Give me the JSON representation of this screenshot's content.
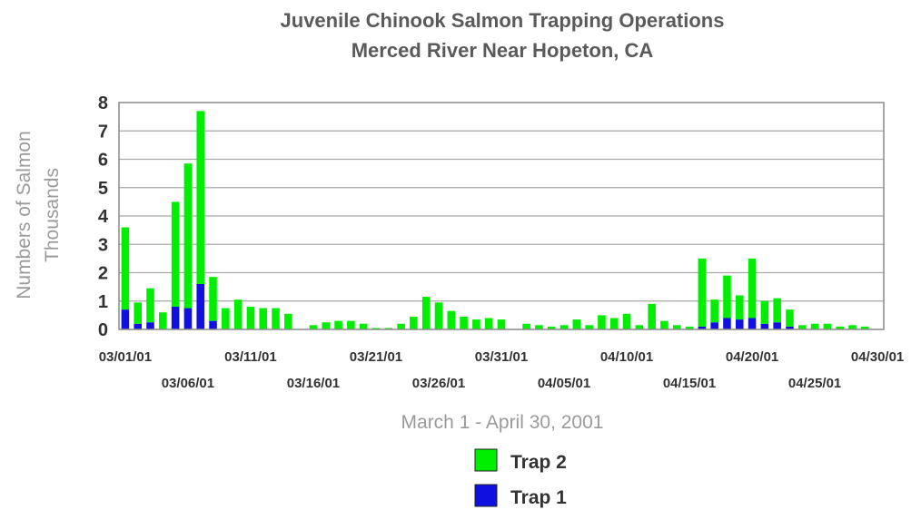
{
  "chart_data": {
    "type": "bar",
    "stacked": true,
    "title": "Juvenile Chinook Salmon Trapping Operations",
    "subtitle": "Merced River Near Hopeton, CA",
    "xlabel": "March 1 - April 30, 2001",
    "ylabel": "Numbers of Salmon",
    "ylabel2": "Thousands",
    "ylim": [
      0,
      8
    ],
    "yticks": [
      0,
      1,
      2,
      3,
      4,
      5,
      6,
      7,
      8
    ],
    "grid": true,
    "legend_position": "bottom-center",
    "categories": [
      "03/01/01",
      "03/02/01",
      "03/03/01",
      "03/04/01",
      "03/05/01",
      "03/06/01",
      "03/07/01",
      "03/08/01",
      "03/09/01",
      "03/10/01",
      "03/11/01",
      "03/12/01",
      "03/13/01",
      "03/14/01",
      "03/15/01",
      "03/16/01",
      "03/17/01",
      "03/18/01",
      "03/19/01",
      "03/20/01",
      "03/21/01",
      "03/22/01",
      "03/23/01",
      "03/24/01",
      "03/25/01",
      "03/26/01",
      "03/27/01",
      "03/28/01",
      "03/29/01",
      "03/30/01",
      "03/31/01",
      "04/01/01",
      "04/02/01",
      "04/03/01",
      "04/04/01",
      "04/05/01",
      "04/06/01",
      "04/07/01",
      "04/08/01",
      "04/09/01",
      "04/10/01",
      "04/11/01",
      "04/12/01",
      "04/13/01",
      "04/14/01",
      "04/15/01",
      "04/16/01",
      "04/17/01",
      "04/18/01",
      "04/19/01",
      "04/20/01",
      "04/21/01",
      "04/22/01",
      "04/23/01",
      "04/24/01",
      "04/25/01",
      "04/26/01",
      "04/27/01",
      "04/28/01",
      "04/29/01",
      "04/30/01"
    ],
    "x_tick_labels": [
      "03/01/01",
      "03/06/01",
      "03/11/01",
      "03/16/01",
      "03/21/01",
      "03/26/01",
      "03/31/01",
      "04/05/01",
      "04/10/01",
      "04/15/01",
      "04/20/01",
      "04/25/01",
      "04/30/01"
    ],
    "series": [
      {
        "name": "Trap 1",
        "color": "#1010e0",
        "values": [
          0.7,
          0.2,
          0.25,
          0,
          0.8,
          0.75,
          1.6,
          0.3,
          0,
          0,
          0,
          0,
          0,
          0,
          0,
          0,
          0,
          0,
          0,
          0,
          0,
          0,
          0,
          0,
          0,
          0,
          0,
          0,
          0,
          0,
          0,
          0,
          0,
          0,
          0,
          0,
          0,
          0,
          0,
          0,
          0,
          0,
          0,
          0,
          0,
          0,
          0.1,
          0.25,
          0.4,
          0.35,
          0.4,
          0.2,
          0.25,
          0.1,
          0,
          0,
          0,
          0,
          0,
          0,
          0
        ]
      },
      {
        "name": "Trap 2",
        "color": "#00ee00",
        "values": [
          2.9,
          0.75,
          1.2,
          0.6,
          3.7,
          5.1,
          6.1,
          1.55,
          0.75,
          1.05,
          0.8,
          0.75,
          0.75,
          0.55,
          0,
          0.15,
          0.25,
          0.3,
          0.3,
          0.2,
          0.05,
          0.05,
          0.2,
          0.45,
          1.15,
          0.95,
          0.65,
          0.45,
          0.35,
          0.4,
          0.35,
          0,
          0.2,
          0.15,
          0.1,
          0.15,
          0.35,
          0.15,
          0.5,
          0.4,
          0.55,
          0.15,
          0.9,
          0.3,
          0.15,
          0.1,
          2.4,
          0.8,
          1.5,
          0.85,
          2.1,
          0.8,
          0.85,
          0.6,
          0.15,
          0.2,
          0.2,
          0.1,
          0.15,
          0.1,
          0
        ]
      }
    ],
    "legend": [
      {
        "name": "Trap 2",
        "color": "#00ee00"
      },
      {
        "name": "Trap 1",
        "color": "#1010e0"
      }
    ]
  }
}
